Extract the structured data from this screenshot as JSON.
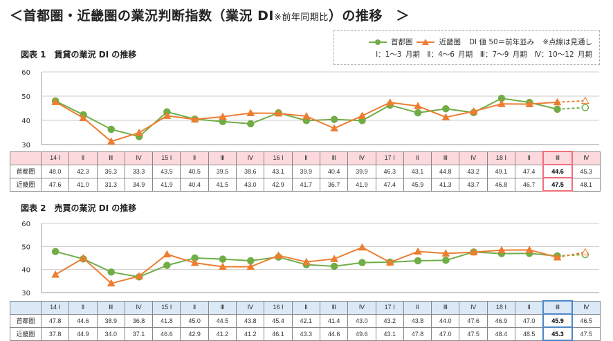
{
  "title": {
    "main": "＜首都圏・近畿圏の業況判断指数（業況 DI",
    "note": "※前年同期比",
    "tail": "）の推移　＞"
  },
  "legend": {
    "series1": "首都圏",
    "series2": "近畿圏",
    "note1": "DI 値 50＝前年並み",
    "note2": "※点線は見通し",
    "quarters": "Ⅰ：1～3 月期　Ⅱ：4～6 月期　Ⅲ：7～9 月期　Ⅳ：10～12 月期"
  },
  "colors": {
    "series1": "#70ad47",
    "series2": "#ed7d31"
  },
  "chart_data": [
    {
      "type": "line",
      "title": "図表 1　賃貸の業況 DI の推移",
      "ylim": [
        30,
        60
      ],
      "yticks": [
        30,
        40,
        50,
        60
      ],
      "grid": true,
      "forecast_from_index": 18,
      "categories": [
        "14 Ⅰ",
        "Ⅱ",
        "Ⅲ",
        "Ⅳ",
        "15 Ⅰ",
        "Ⅱ",
        "Ⅲ",
        "Ⅳ",
        "16 Ⅰ",
        "Ⅱ",
        "Ⅲ",
        "Ⅳ",
        "17 Ⅰ",
        "Ⅱ",
        "Ⅲ",
        "Ⅳ",
        "18 Ⅰ",
        "Ⅱ",
        "Ⅲ",
        "Ⅳ"
      ],
      "series": [
        {
          "name": "首都圏",
          "values": [
            48.0,
            42.3,
            36.3,
            33.3,
            43.5,
            40.5,
            39.5,
            38.6,
            43.1,
            39.9,
            40.4,
            39.9,
            46.3,
            43.1,
            44.8,
            43.2,
            49.1,
            47.4,
            44.6,
            45.3
          ]
        },
        {
          "name": "近畿圏",
          "values": [
            47.6,
            41.0,
            31.3,
            34.9,
            41.9,
            40.4,
            41.5,
            43.0,
            42.9,
            41.7,
            36.7,
            41.9,
            47.4,
            45.9,
            41.3,
            43.7,
            46.8,
            46.7,
            47.5,
            48.1
          ]
        }
      ]
    },
    {
      "type": "line",
      "title": "図表 2　売買の業況 DI の推移",
      "ylim": [
        30,
        60
      ],
      "yticks": [
        30,
        40,
        50,
        60
      ],
      "grid": true,
      "forecast_from_index": 18,
      "categories": [
        "14 Ⅰ",
        "Ⅱ",
        "Ⅲ",
        "Ⅳ",
        "15 Ⅰ",
        "Ⅱ",
        "Ⅲ",
        "Ⅳ",
        "16 Ⅰ",
        "Ⅱ",
        "Ⅲ",
        "Ⅳ",
        "17 Ⅰ",
        "Ⅱ",
        "Ⅲ",
        "Ⅳ",
        "18 Ⅰ",
        "Ⅱ",
        "Ⅲ",
        "Ⅳ"
      ],
      "series": [
        {
          "name": "首都圏",
          "values": [
            47.8,
            44.6,
            38.9,
            36.8,
            41.8,
            45.0,
            44.5,
            43.8,
            45.4,
            42.1,
            41.4,
            43.0,
            43.2,
            43.8,
            44.0,
            47.6,
            46.9,
            47.0,
            45.9,
            46.5
          ]
        },
        {
          "name": "近畿圏",
          "values": [
            37.8,
            44.9,
            34.0,
            37.1,
            46.6,
            42.9,
            41.2,
            41.2,
            46.1,
            43.3,
            44.6,
            49.6,
            43.1,
            47.8,
            47.0,
            47.5,
            48.4,
            48.5,
            45.3,
            47.5
          ]
        }
      ]
    }
  ]
}
